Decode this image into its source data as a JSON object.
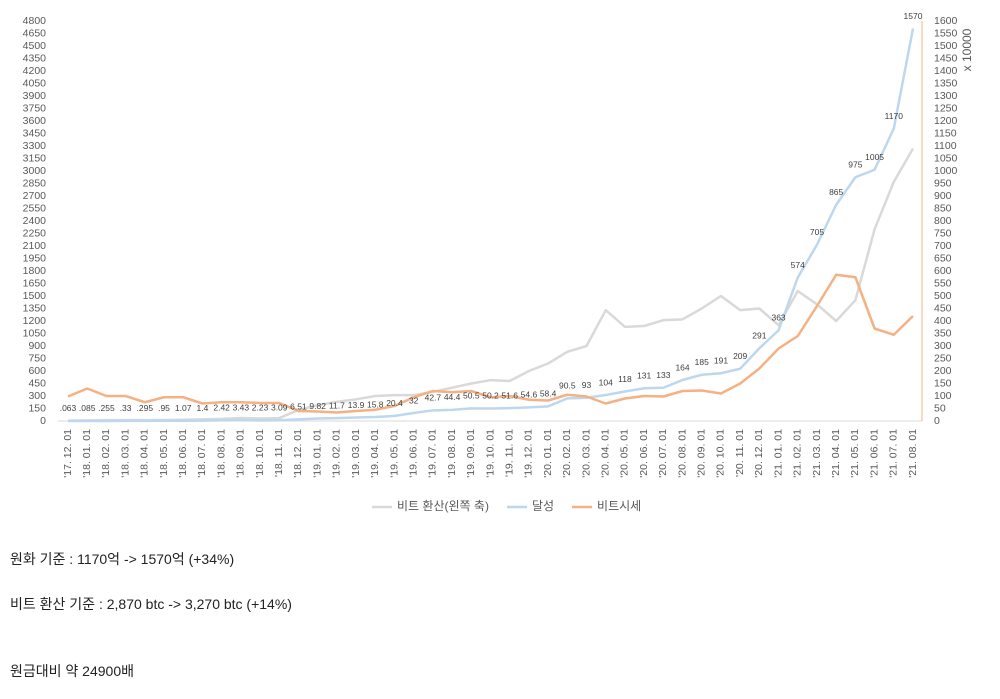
{
  "chart_data": {
    "type": "line",
    "categories": [
      "'17. 12. 01",
      "'18. 01. 01",
      "'18. 02. 01",
      "'18. 03. 01",
      "'18. 04. 01",
      "'18. 05. 01",
      "'18. 06. 01",
      "'18. 07. 01",
      "'18. 08. 01",
      "'18. 09. 01",
      "'18. 10. 01",
      "'18. 11. 01",
      "'18. 12. 01",
      "'19. 01. 01",
      "'19. 02. 01",
      "'19. 03. 01",
      "'19. 04. 01",
      "'19. 05. 01",
      "'19. 06. 01",
      "'19. 07. 01",
      "'19. 08. 01",
      "'19. 09. 01",
      "'19. 10. 01",
      "'19. 11. 01",
      "'19. 12. 01",
      "'20. 01. 01",
      "'20. 02. 01",
      "'20. 03. 01",
      "'20. 04. 01",
      "'20. 05. 01",
      "'20. 06. 01",
      "'20. 07. 01",
      "'20. 08. 01",
      "'20. 09. 01",
      "'20. 10. 01",
      "'20. 11. 01",
      "'20. 12. 01",
      "'21. 01. 01",
      "'21. 02. 01",
      "'21. 03. 01",
      "'21. 04. 01",
      "'21. 05. 01",
      "'21. 06. 01",
      "'21. 07. 01",
      "'21. 08. 01"
    ],
    "series": [
      {
        "name": "비트 환산(왼쪽 축)",
        "color": "#d9d9d9",
        "axis": "y",
        "values": [
          5,
          8,
          10,
          10,
          10,
          12,
          15,
          20,
          25,
          36,
          30,
          35,
          132,
          190,
          230,
          260,
          300,
          310,
          310,
          350,
          400,
          450,
          490,
          480,
          600,
          690,
          830,
          900,
          1330,
          1130,
          1140,
          1210,
          1220,
          1350,
          1500,
          1330,
          1350,
          1150,
          1560,
          1400,
          1200,
          1450,
          2300,
          2870,
          3270
        ]
      },
      {
        "name": "달성",
        "color": "#bdd7ee",
        "axis": "y2",
        "values": [
          0.063,
          0.085,
          0.255,
          0.33,
          0.295,
          0.95,
          1.07,
          1.4,
          2.42,
          3.43,
          2.23,
          3.09,
          6.51,
          9.82,
          11.7,
          13.9,
          15.8,
          20.4,
          32,
          42.7,
          44.4,
          50.5,
          50.2,
          51.6,
          54.6,
          58.4,
          90.5,
          93,
          104,
          118,
          131,
          133,
          164,
          185,
          191,
          209,
          291,
          363,
          574,
          705,
          865,
          975,
          1005,
          1170,
          1570
        ],
        "value_labels": [
          ".063",
          ".085",
          ".255",
          ".33",
          ".295",
          ".95",
          "1.07",
          "1.4",
          "2.42",
          "3.43",
          "2.23",
          "3.09",
          "6.51",
          "9.82",
          "11.7",
          "13.9",
          "15.8",
          "20.4",
          "32",
          "42.7",
          "44.4",
          "50.5",
          "50.2",
          "51.6",
          "54.6",
          "58.4",
          "90.5",
          "93",
          "104",
          "118",
          "131",
          "133",
          "164",
          "185",
          "191",
          "209",
          "291",
          "363",
          "574",
          "705",
          "865",
          "975",
          "1005",
          "1170",
          "1570"
        ]
      },
      {
        "name": "비트시세",
        "color": "#f4b183",
        "axis": "y2",
        "values": [
          98,
          130,
          100,
          100,
          75,
          95,
          95,
          70,
          75,
          75,
          72,
          72,
          40,
          38,
          34,
          40,
          45,
          60,
          95,
          120,
          115,
          120,
          95,
          100,
          85,
          82,
          105,
          98,
          70,
          90,
          100,
          98,
          120,
          122,
          110,
          150,
          210,
          290,
          340,
          460,
          585,
          575,
          370,
          345,
          420
        ]
      }
    ],
    "ylim": [
      0,
      4800
    ],
    "yticks": [
      0,
      150,
      300,
      450,
      600,
      750,
      900,
      1050,
      1200,
      1350,
      1500,
      1650,
      1800,
      1950,
      2100,
      2250,
      2400,
      2550,
      2700,
      2850,
      3000,
      3150,
      3300,
      3450,
      3600,
      3750,
      3900,
      4050,
      4200,
      4350,
      4500,
      4650,
      4800
    ],
    "y2lim": [
      0,
      1600
    ],
    "y2ticks": [
      0,
      50,
      100,
      150,
      200,
      250,
      300,
      350,
      400,
      450,
      500,
      550,
      600,
      650,
      700,
      750,
      800,
      850,
      900,
      950,
      1000,
      1050,
      1100,
      1150,
      1200,
      1250,
      1300,
      1350,
      1400,
      1450,
      1500,
      1550,
      1600
    ],
    "y2label": "x 10000",
    "grid": false,
    "legend": "bottom"
  },
  "notes": [
    "원화 기준 : 1170억 -> 1570억 (+34%)",
    "비트 환산 기준 : 2,870 btc -> 3,270 btc (+14%)",
    "원금대비 약 24900배"
  ]
}
